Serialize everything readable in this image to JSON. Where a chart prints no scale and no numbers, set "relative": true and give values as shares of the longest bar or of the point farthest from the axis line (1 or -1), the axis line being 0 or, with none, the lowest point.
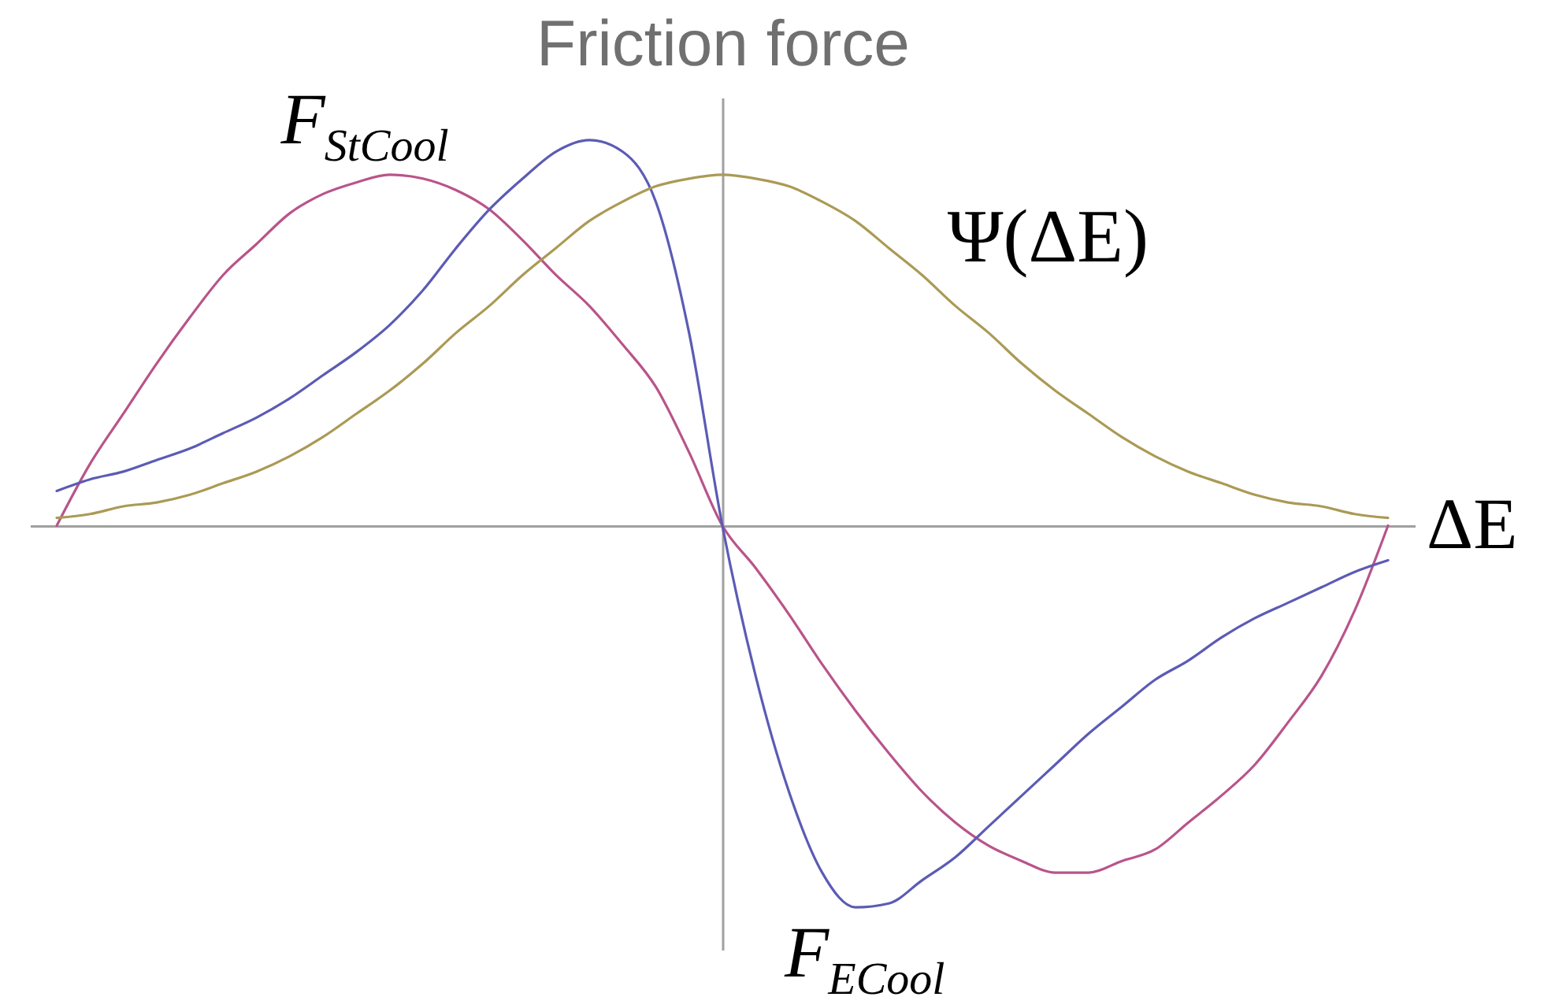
{
  "chart_data": {
    "type": "line",
    "xlabel": "ΔE",
    "ylabel": "Friction force",
    "relative": true,
    "categories": [
      null,
      null,
      null,
      null,
      null,
      null,
      null,
      null,
      null,
      null,
      null,
      null,
      null,
      null,
      null,
      null,
      null,
      null,
      null,
      null,
      null,
      null,
      null,
      null,
      null,
      null,
      null,
      null,
      null,
      null,
      null,
      null,
      null,
      null,
      null,
      null,
      null,
      null,
      null,
      null,
      null
    ],
    "series": [
      {
        "name": "F$_{StCool}$",
        "color": "#b9548a",
        "values": [
          0,
          0.16,
          0.29,
          0.42,
          0.54,
          0.65,
          0.73,
          0.81,
          0.86,
          0.89,
          0.91,
          0.9,
          0.87,
          0.82,
          0.74,
          0.65,
          0.57,
          0.47,
          0.36,
          0.19,
          0,
          -0.11,
          -0.23,
          -0.36,
          -0.48,
          -0.59,
          -0.69,
          -0.77,
          -0.83,
          -0.87,
          -0.9,
          -0.9,
          -0.87,
          -0.84,
          -0.77,
          -0.7,
          -0.62,
          -0.51,
          -0.39,
          -0.22,
          0
        ]
      },
      {
        "name": "F$_{ECool}$",
        "color": "#5b5bb5",
        "values": [
          0.09,
          0.12,
          0.14,
          0.17,
          0.2,
          0.24,
          0.28,
          0.33,
          0.39,
          0.45,
          0.52,
          0.61,
          0.72,
          0.82,
          0.9,
          0.97,
          1.0,
          0.97,
          0.84,
          0.5,
          0,
          -0.39,
          -0.69,
          -0.9,
          -0.99,
          -0.98,
          -0.92,
          -0.86,
          -0.78,
          -0.7,
          -0.62,
          -0.54,
          -0.47,
          -0.4,
          -0.35,
          -0.29,
          -0.24,
          -0.2,
          -0.16,
          -0.12,
          -0.09
        ]
      },
      {
        "name": "Ψ(ΔE)",
        "color": "#aa9a55",
        "values": [
          0.02,
          0.03,
          0.05,
          0.06,
          0.08,
          0.11,
          0.14,
          0.18,
          0.23,
          0.29,
          0.35,
          0.42,
          0.5,
          0.57,
          0.65,
          0.72,
          0.79,
          0.84,
          0.88,
          0.9,
          0.91,
          0.9,
          0.88,
          0.84,
          0.79,
          0.72,
          0.65,
          0.57,
          0.5,
          0.42,
          0.35,
          0.29,
          0.23,
          0.18,
          0.14,
          0.11,
          0.08,
          0.06,
          0.05,
          0.03,
          0.02
        ]
      }
    ]
  }
}
